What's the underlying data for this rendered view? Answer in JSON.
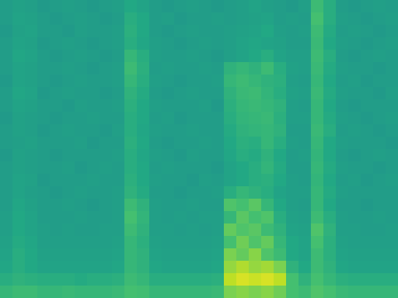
{
  "chart_data": {
    "type": "heatmap",
    "tick_labels": false,
    "color_range": [
      0,
      100
    ],
    "cells": [
      [
        55,
        57,
        56,
        54,
        55,
        56,
        55,
        54,
        55,
        56,
        60,
        58,
        55,
        54,
        55,
        56,
        55,
        54,
        55,
        56,
        58,
        56,
        55,
        54,
        56,
        68,
        62,
        55,
        54,
        55,
        56,
        55
      ],
      [
        55,
        58,
        57,
        55,
        54,
        55,
        56,
        55,
        54,
        55,
        62,
        60,
        55,
        56,
        54,
        55,
        55,
        56,
        55,
        56,
        57,
        58,
        55,
        56,
        55,
        70,
        62,
        56,
        55,
        54,
        55,
        56
      ],
      [
        54,
        57,
        58,
        55,
        55,
        54,
        56,
        55,
        55,
        56,
        63,
        60,
        55,
        54,
        55,
        56,
        55,
        55,
        56,
        57,
        58,
        60,
        56,
        55,
        56,
        68,
        61,
        55,
        56,
        55,
        54,
        55
      ],
      [
        55,
        58,
        57,
        54,
        55,
        56,
        55,
        54,
        55,
        56,
        62,
        59,
        56,
        55,
        54,
        55,
        56,
        55,
        56,
        58,
        59,
        58,
        57,
        55,
        55,
        67,
        60,
        56,
        55,
        54,
        55,
        56
      ],
      [
        55,
        59,
        58,
        55,
        54,
        55,
        56,
        55,
        54,
        55,
        66,
        62,
        56,
        55,
        55,
        56,
        55,
        54,
        56,
        58,
        60,
        62,
        58,
        56,
        56,
        68,
        62,
        55,
        54,
        55,
        56,
        55
      ],
      [
        55,
        58,
        57,
        55,
        55,
        56,
        55,
        54,
        55,
        56,
        68,
        63,
        55,
        56,
        55,
        55,
        56,
        55,
        64,
        66,
        64,
        68,
        62,
        57,
        56,
        67,
        61,
        56,
        55,
        55,
        54,
        55
      ],
      [
        54,
        58,
        57,
        55,
        54,
        55,
        56,
        55,
        55,
        56,
        66,
        62,
        56,
        55,
        54,
        55,
        55,
        56,
        66,
        68,
        66,
        64,
        63,
        56,
        55,
        66,
        60,
        55,
        56,
        54,
        55,
        55
      ],
      [
        55,
        59,
        58,
        54,
        55,
        56,
        55,
        55,
        54,
        55,
        64,
        61,
        55,
        54,
        55,
        56,
        55,
        55,
        64,
        67,
        68,
        65,
        62,
        57,
        56,
        67,
        61,
        56,
        55,
        55,
        54,
        56
      ],
      [
        55,
        58,
        57,
        55,
        55,
        54,
        56,
        55,
        55,
        56,
        63,
        60,
        56,
        55,
        55,
        55,
        56,
        54,
        63,
        66,
        67,
        66,
        64,
        56,
        55,
        66,
        60,
        55,
        54,
        55,
        55,
        55
      ],
      [
        54,
        57,
        56,
        55,
        54,
        55,
        55,
        56,
        55,
        55,
        62,
        60,
        55,
        56,
        54,
        55,
        55,
        55,
        62,
        65,
        66,
        67,
        63,
        56,
        56,
        66,
        61,
        56,
        55,
        54,
        55,
        56
      ],
      [
        55,
        57,
        56,
        54,
        55,
        56,
        55,
        55,
        54,
        56,
        62,
        59,
        56,
        55,
        55,
        56,
        55,
        55,
        61,
        64,
        65,
        66,
        64,
        55,
        55,
        67,
        62,
        55,
        56,
        55,
        54,
        55
      ],
      [
        55,
        56,
        57,
        55,
        55,
        55,
        56,
        54,
        55,
        55,
        63,
        60,
        55,
        54,
        55,
        55,
        56,
        55,
        60,
        63,
        62,
        66,
        62,
        56,
        55,
        66,
        60,
        56,
        55,
        55,
        55,
        54
      ],
      [
        54,
        57,
        56,
        55,
        54,
        55,
        55,
        55,
        55,
        56,
        62,
        59,
        56,
        55,
        54,
        56,
        55,
        55,
        59,
        62,
        61,
        64,
        60,
        55,
        56,
        65,
        60,
        55,
        54,
        55,
        56,
        55
      ],
      [
        55,
        57,
        56,
        55,
        55,
        56,
        54,
        55,
        56,
        55,
        62,
        60,
        55,
        56,
        55,
        55,
        55,
        54,
        58,
        60,
        62,
        65,
        61,
        55,
        55,
        66,
        61,
        56,
        55,
        55,
        54,
        55
      ],
      [
        55,
        58,
        57,
        54,
        55,
        55,
        55,
        56,
        55,
        55,
        63,
        60,
        56,
        55,
        55,
        54,
        56,
        55,
        58,
        60,
        62,
        63,
        60,
        56,
        55,
        65,
        60,
        55,
        56,
        54,
        55,
        56
      ],
      [
        55,
        58,
        56,
        55,
        54,
        55,
        56,
        55,
        55,
        56,
        64,
        61,
        55,
        55,
        54,
        55,
        55,
        56,
        62,
        66,
        64,
        62,
        58,
        56,
        56,
        66,
        61,
        56,
        55,
        55,
        55,
        55
      ],
      [
        55,
        59,
        57,
        55,
        55,
        56,
        55,
        54,
        55,
        56,
        68,
        64,
        56,
        55,
        55,
        56,
        55,
        55,
        72,
        70,
        74,
        66,
        60,
        56,
        55,
        66,
        60,
        55,
        55,
        54,
        55,
        55
      ],
      [
        56,
        60,
        58,
        55,
        55,
        55,
        56,
        55,
        55,
        56,
        70,
        65,
        56,
        55,
        56,
        55,
        56,
        56,
        66,
        74,
        70,
        72,
        62,
        57,
        56,
        68,
        62,
        56,
        55,
        55,
        56,
        55
      ],
      [
        56,
        60,
        58,
        56,
        55,
        56,
        55,
        55,
        56,
        56,
        68,
        64,
        56,
        56,
        55,
        56,
        55,
        56,
        76,
        72,
        74,
        68,
        64,
        58,
        57,
        72,
        64,
        56,
        56,
        55,
        55,
        56
      ],
      [
        57,
        61,
        59,
        56,
        56,
        56,
        56,
        56,
        56,
        57,
        66,
        63,
        57,
        56,
        56,
        56,
        56,
        57,
        70,
        78,
        72,
        76,
        66,
        60,
        58,
        70,
        63,
        57,
        56,
        56,
        56,
        56
      ],
      [
        58,
        62,
        60,
        57,
        57,
        57,
        57,
        57,
        57,
        58,
        66,
        64,
        58,
        57,
        57,
        57,
        57,
        58,
        80,
        76,
        82,
        72,
        68,
        60,
        58,
        68,
        63,
        58,
        57,
        57,
        57,
        57
      ],
      [
        59,
        62,
        60,
        58,
        58,
        58,
        58,
        58,
        58,
        59,
        66,
        64,
        59,
        58,
        58,
        58,
        58,
        59,
        84,
        88,
        84,
        86,
        80,
        64,
        60,
        68,
        64,
        59,
        58,
        58,
        58,
        58
      ],
      [
        62,
        64,
        63,
        62,
        62,
        62,
        61,
        62,
        62,
        63,
        68,
        66,
        62,
        62,
        62,
        62,
        62,
        63,
        90,
        94,
        92,
        94,
        90,
        70,
        64,
        70,
        66,
        63,
        62,
        62,
        62,
        62
      ],
      [
        66,
        68,
        68,
        66,
        66,
        67,
        66,
        66,
        66,
        67,
        70,
        69,
        66,
        66,
        66,
        66,
        66,
        67,
        80,
        82,
        80,
        82,
        78,
        70,
        68,
        72,
        70,
        67,
        66,
        66,
        66,
        66
      ]
    ]
  }
}
